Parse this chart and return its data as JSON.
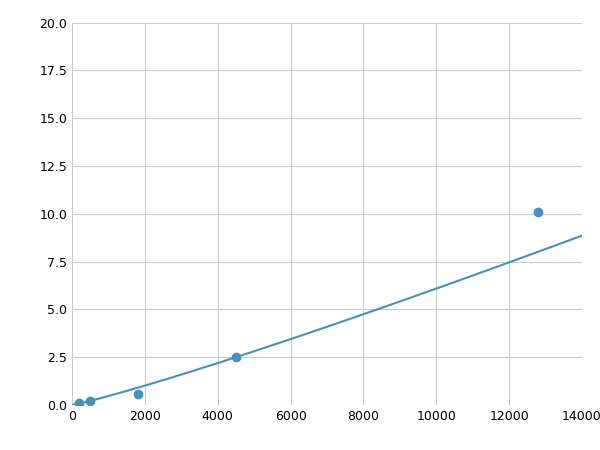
{
  "x": [
    200,
    500,
    1800,
    4500,
    12800
  ],
  "y": [
    0.1,
    0.2,
    0.6,
    2.5,
    10.1
  ],
  "line_color": "#4a90b8",
  "marker_color": "#4a90b8",
  "marker_size": 6,
  "line_width": 1.5,
  "xlim": [
    0,
    14000
  ],
  "ylim": [
    0,
    20
  ],
  "xticks": [
    0,
    2000,
    4000,
    6000,
    8000,
    10000,
    12000,
    14000
  ],
  "yticks": [
    0.0,
    2.5,
    5.0,
    7.5,
    10.0,
    12.5,
    15.0,
    17.5,
    20.0
  ],
  "grid_color": "#cccccc",
  "background_color": "#ffffff",
  "figsize": [
    6.0,
    4.5
  ],
  "dpi": 100
}
